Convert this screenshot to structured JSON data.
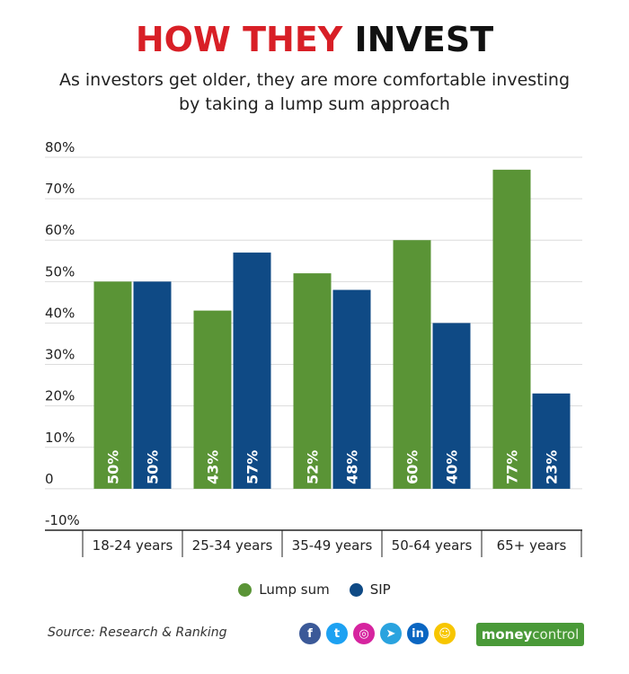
{
  "title": {
    "part1": "HOW THEY",
    "part2": "INVEST"
  },
  "subtitle": "As investors get older, they are more comfortable investing by taking a lump sum approach",
  "colors": {
    "lump": "#5a9436",
    "sip": "#0f4a85",
    "title_red": "#d81f26"
  },
  "chart_data": {
    "type": "bar",
    "categories": [
      "18-24 years",
      "25-34 years",
      "35-49 years",
      "50-64 years",
      "65+ years"
    ],
    "series": [
      {
        "name": "Lump sum",
        "values": [
          50,
          43,
          52,
          60,
          77
        ],
        "labels": [
          "50%",
          "43%",
          "52%",
          "60%",
          "77%"
        ]
      },
      {
        "name": "SIP",
        "values": [
          50,
          57,
          48,
          40,
          23
        ],
        "labels": [
          "50%",
          "57%",
          "48%",
          "40%",
          "23%"
        ]
      }
    ],
    "ylim": [
      -10,
      80
    ],
    "yticks": [
      80,
      70,
      60,
      50,
      40,
      30,
      20,
      10,
      0,
      -10
    ],
    "ytick_labels": [
      "80%",
      "70%",
      "60%",
      "50%",
      "40%",
      "30%",
      "20%",
      "10%",
      "0",
      "-10%"
    ],
    "legend": "bottom-center",
    "grid": true
  },
  "legend": {
    "lump": "Lump sum",
    "sip": "SIP"
  },
  "source": "Source: Research & Ranking",
  "social": [
    {
      "icon": "facebook-icon",
      "glyph": "f",
      "color": "#3b5998"
    },
    {
      "icon": "twitter-icon",
      "glyph": "t",
      "color": "#1da1f2"
    },
    {
      "icon": "instagram-icon",
      "glyph": "◎",
      "color": "#d6249f"
    },
    {
      "icon": "telegram-icon",
      "glyph": "➤",
      "color": "#2aa3df"
    },
    {
      "icon": "linkedin-icon",
      "glyph": "in",
      "color": "#0a66c2"
    },
    {
      "icon": "snapchat-icon",
      "glyph": "☺",
      "color": "#f7c600"
    }
  ],
  "brand": {
    "money": "money",
    "control": "control"
  }
}
